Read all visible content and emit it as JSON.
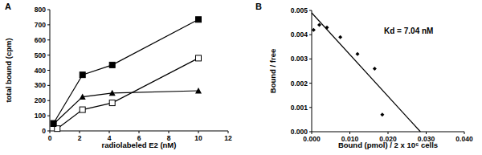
{
  "chart_data": [
    {
      "type": "line",
      "title": "A",
      "x_label": "radiolabeled E2 (nM)",
      "y_label": "total bound (cpm)",
      "xlim": [
        0,
        12
      ],
      "xticks": [
        0,
        2,
        4,
        6,
        8,
        10,
        12
      ],
      "ylim": [
        0,
        800
      ],
      "yticks": [
        0,
        100,
        200,
        300,
        400,
        500,
        600,
        700,
        800
      ],
      "grid": false,
      "series": [
        {
          "color": "#000000",
          "marker": "square",
          "x": [
            0.25,
            2.2,
            4.2,
            10
          ],
          "values": [
            50,
            370,
            435,
            735
          ]
        },
        {
          "color": "#000000",
          "marker": "open-square",
          "x": [
            0.5,
            2.2,
            4.2,
            10
          ],
          "values": [
            15,
            140,
            185,
            480
          ]
        },
        {
          "color": "#000000",
          "marker": "triangle",
          "x": [
            0.25,
            2.2,
            4.2,
            10
          ],
          "values": [
            45,
            225,
            250,
            265
          ]
        }
      ]
    },
    {
      "type": "scatter",
      "title": "B",
      "x_label": "Bound (pmol) / 2 x 10⁶ cells",
      "y_label": "Bound / free",
      "annotation": "Kd = 7.04 nM",
      "xlim": [
        0,
        0.04
      ],
      "xticks": [
        {
          "value": 0,
          "label": "0.000"
        },
        {
          "value": 0.01,
          "label": "0.010"
        },
        {
          "value": 0.02,
          "label": "0.020"
        },
        {
          "value": 0.03,
          "label": "0.030"
        },
        {
          "value": 0.04,
          "label": "0.040"
        }
      ],
      "ylim": [
        0,
        0.005
      ],
      "yticks": [
        {
          "value": 0,
          "label": "0.000"
        },
        {
          "value": 0.001,
          "label": "0.001"
        },
        {
          "value": 0.002,
          "label": "0.002"
        },
        {
          "value": 0.003,
          "label": "0.003"
        },
        {
          "value": 0.004,
          "label": "0.004"
        },
        {
          "value": 0.005,
          "label": "0.005"
        }
      ],
      "grid": false,
      "series": [
        {
          "type": "scatter",
          "color": "#000000",
          "marker": "diamond",
          "x": [
            0.0005,
            0.002,
            0.004,
            0.0075,
            0.012,
            0.0165,
            0.0185
          ],
          "values": [
            0.0042,
            0.0044,
            0.0043,
            0.0039,
            0.0032,
            0.0026,
            0.0007
          ]
        },
        {
          "type": "line",
          "color": "#000000",
          "marker": "none",
          "x": [
            0,
            0.0285
          ],
          "values": [
            0.0049,
            0
          ]
        }
      ]
    }
  ]
}
